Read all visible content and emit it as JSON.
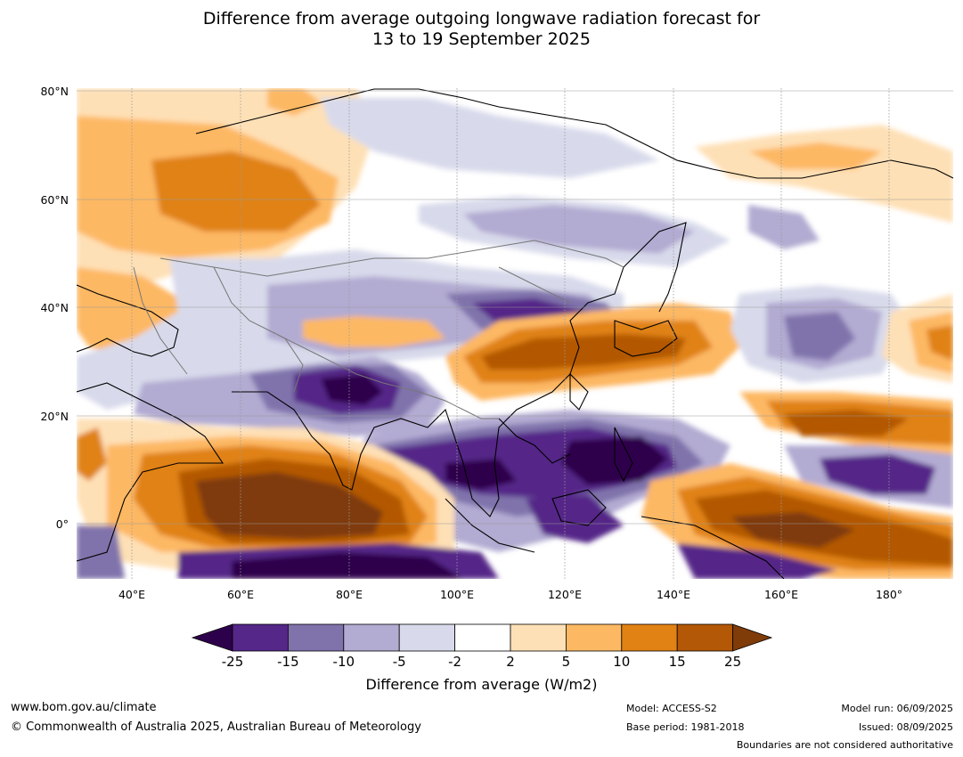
{
  "title_line1": "Difference from average outgoing longwave radiation forecast for",
  "title_line2": "13 to 19 September 2025",
  "axes": {
    "lat_ticks": [
      "80°N",
      "60°N",
      "40°N",
      "20°N",
      "0°"
    ],
    "lon_ticks": [
      "40°E",
      "60°E",
      "80°E",
      "100°E",
      "120°E",
      "140°E",
      "160°E",
      "180°"
    ]
  },
  "colorbar": {
    "levels": [
      "-25",
      "-15",
      "-10",
      "-5",
      "-2",
      "2",
      "5",
      "10",
      "15",
      "25"
    ],
    "colors": [
      "#2d004b",
      "#542788",
      "#8073ac",
      "#b2abd2",
      "#d8daeb",
      "#ffffff",
      "#fee0b6",
      "#fdb863",
      "#e08214",
      "#b35806",
      "#7f3b08"
    ],
    "title": "Difference from average (W/m2)"
  },
  "footer": {
    "url": "www.bom.gov.au/climate",
    "copyright": "© Commonwealth of Australia 2025, Australian Bureau of Meteorology",
    "model": "Model: ACCESS-S2",
    "base_period": "Base period: 1981-2018",
    "model_run": "Model run: 06/09/2025",
    "issued": "Issued: 08/09/2025",
    "disclaimer": "Boundaries are not considered authoritative"
  }
}
